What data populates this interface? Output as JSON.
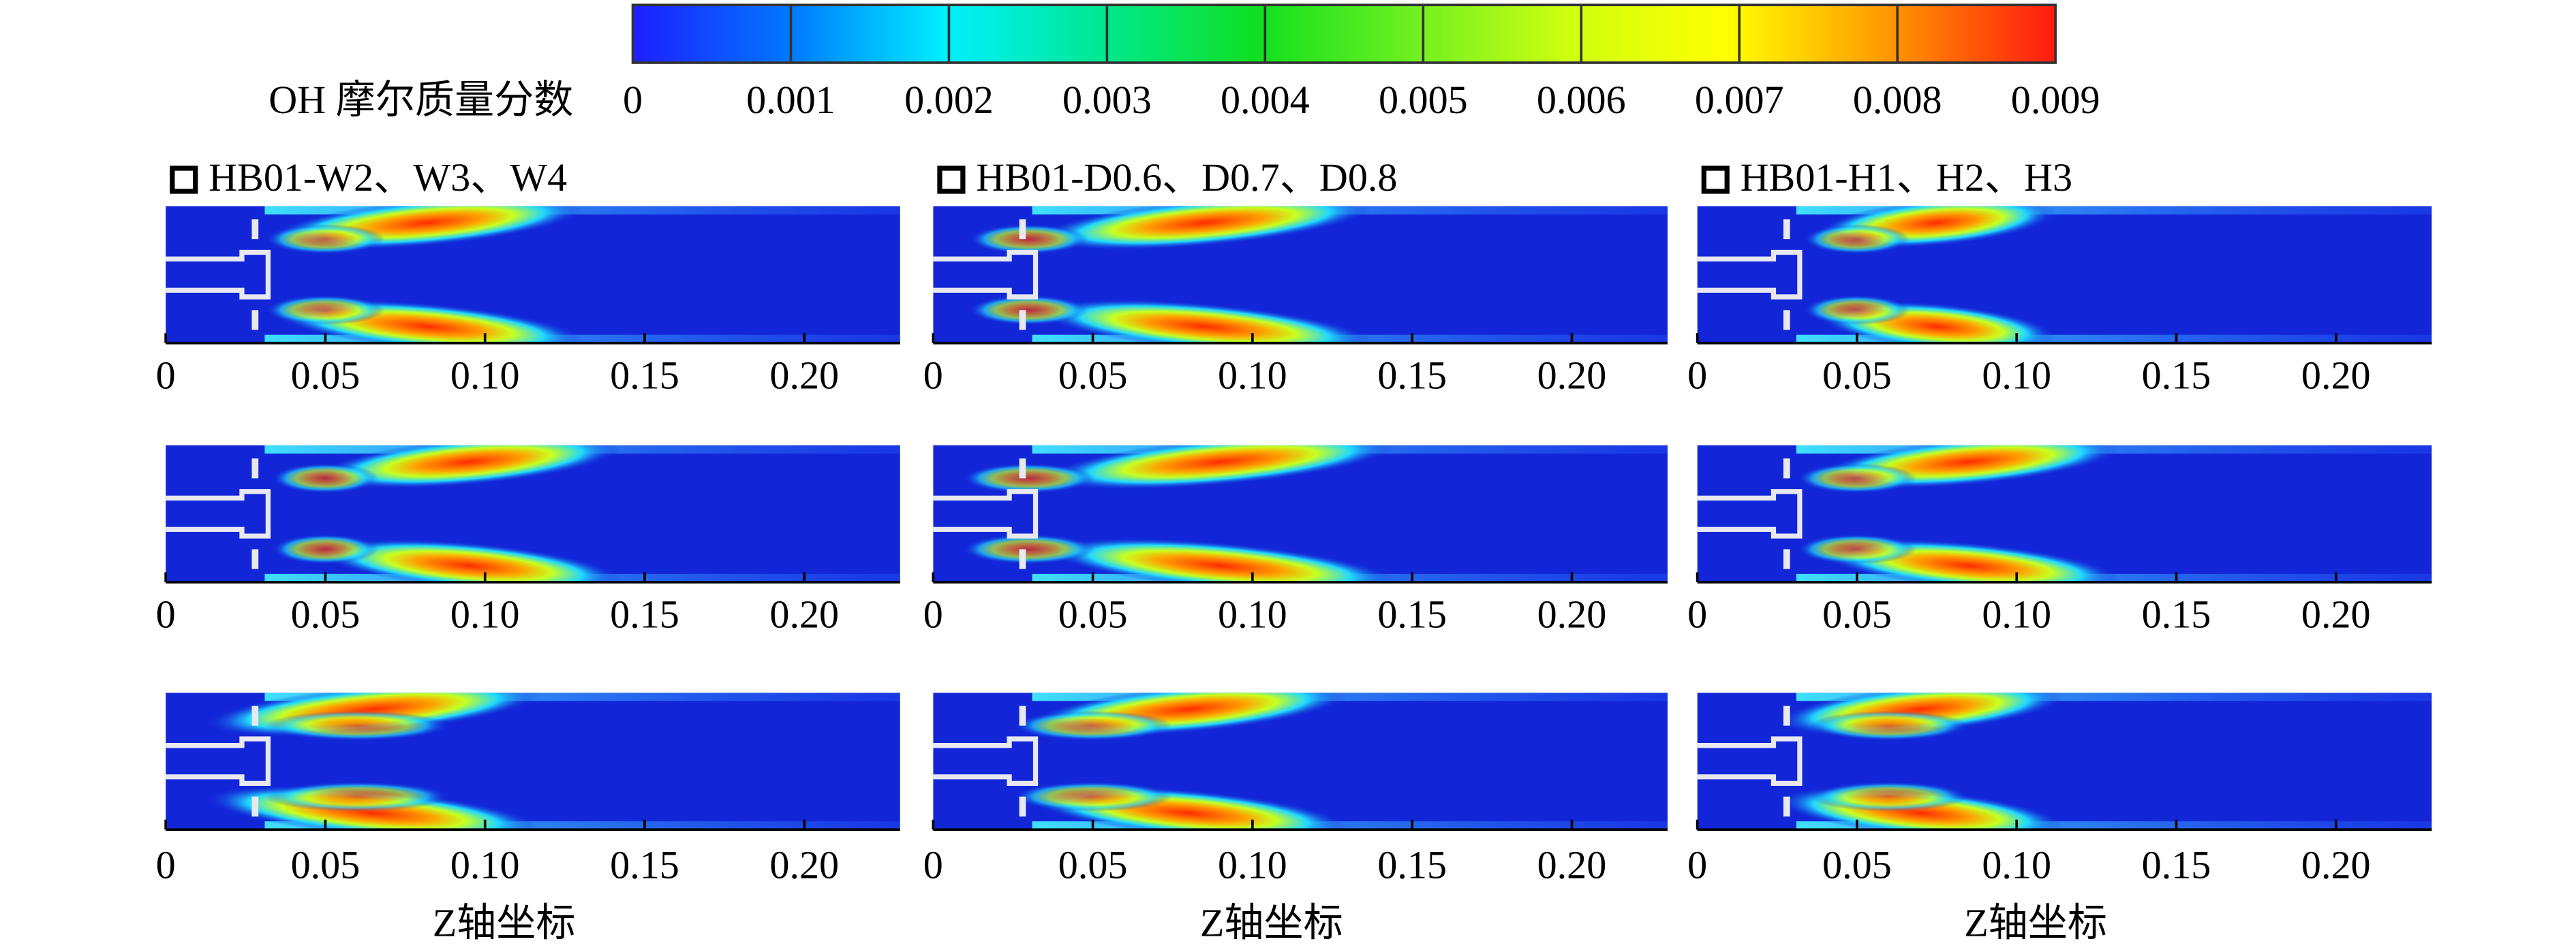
{
  "colorbar": {
    "label": "OH 摩尔质量分数",
    "clim": [
      0,
      0.009
    ],
    "ticks": [
      0,
      0.001,
      0.002,
      0.003,
      0.004,
      0.005,
      0.006,
      0.007,
      0.008,
      0.009
    ]
  },
  "xaxis": {
    "xlim": [
      0,
      0.23
    ],
    "xticks": [
      0,
      0.05,
      {
        "value": 0.1,
        "label": "0.10"
      },
      0.15,
      {
        "value": 0.2,
        "label": "0.20"
      }
    ]
  },
  "columns": [
    {
      "title": "HB01-W2、W3、W4",
      "xlabel": "Z轴坐标"
    },
    {
      "title": "HB01-D0.6、D0.7、D0.8",
      "xlabel": "Z轴坐标"
    },
    {
      "title": "HB01-H1、H2、H3",
      "xlabel": "Z轴坐标"
    }
  ]
}
